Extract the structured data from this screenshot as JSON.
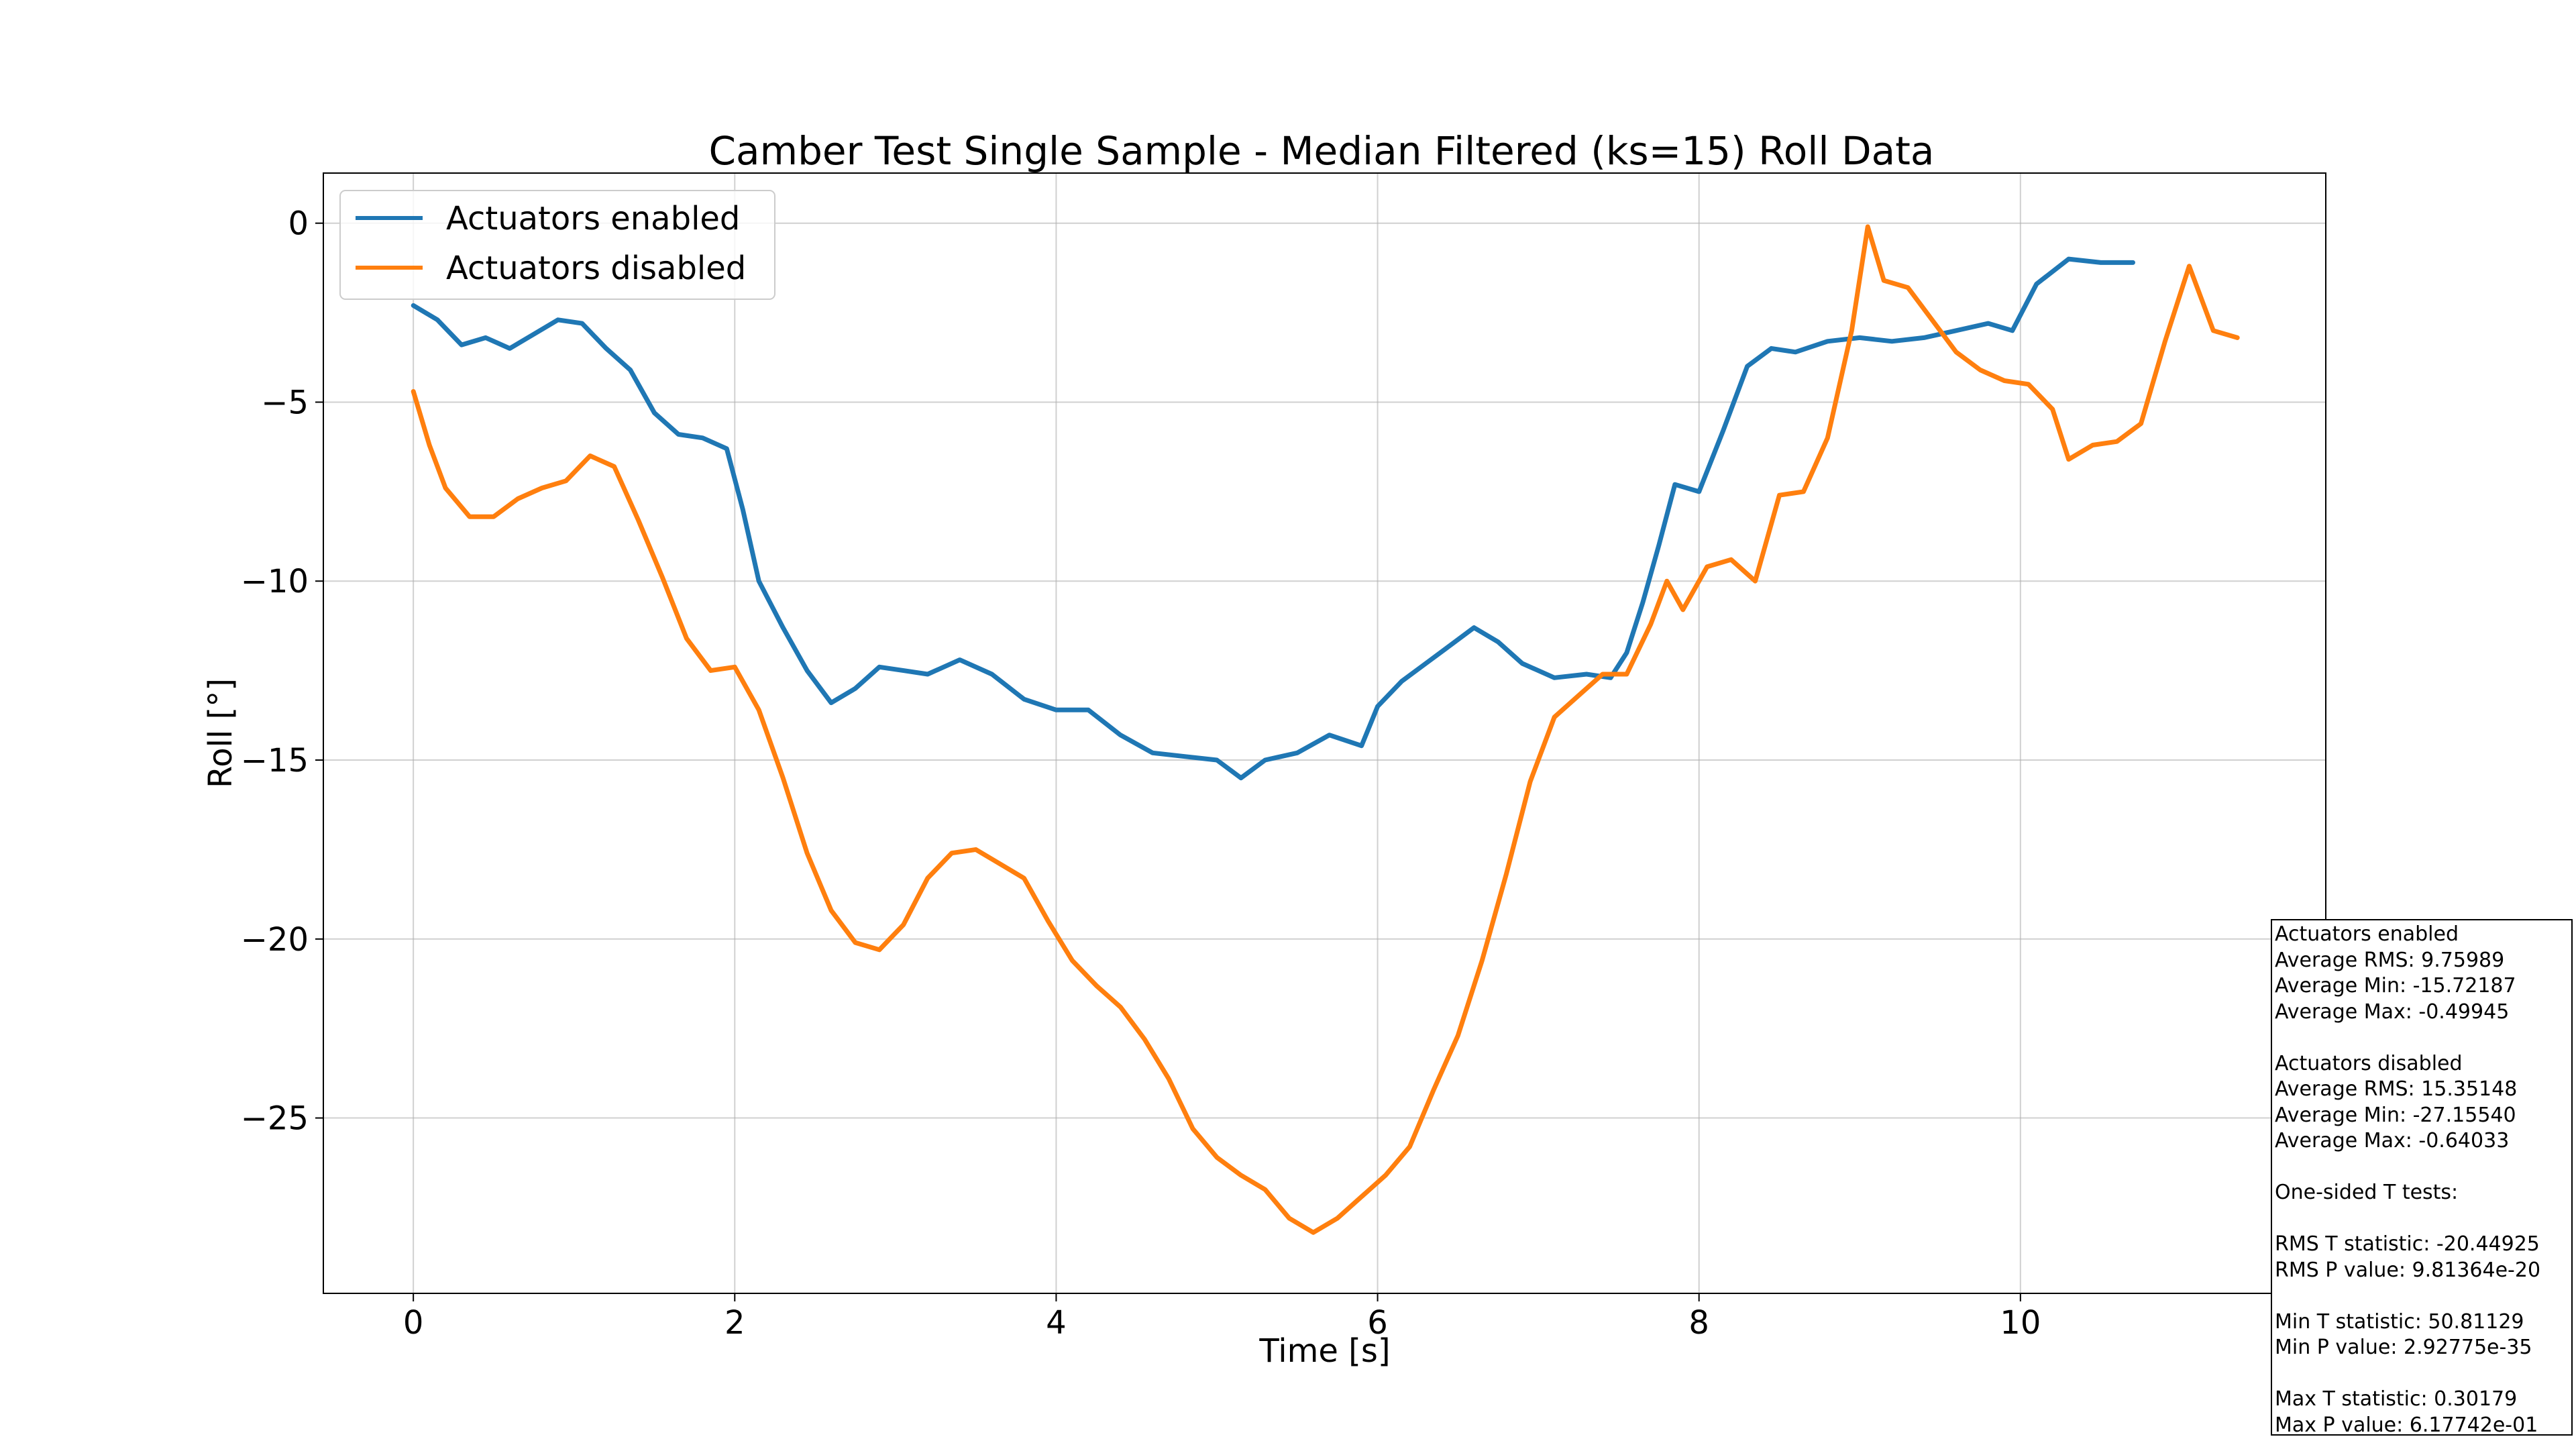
{
  "chart_data": {
    "type": "line",
    "title": "Camber Test Single Sample - Median Filtered (ks=15) Roll Data",
    "xlabel": "Time [s]",
    "ylabel": "Roll [°]",
    "xlim": [
      -0.56,
      11.9
    ],
    "ylim": [
      -29.9,
      1.4
    ],
    "xticks": [
      0,
      2,
      4,
      6,
      8,
      10
    ],
    "xtick_labels": [
      "0",
      "2",
      "4",
      "6",
      "8",
      "10"
    ],
    "yticks": [
      0,
      -5,
      -10,
      -15,
      -20,
      -25
    ],
    "ytick_labels": [
      "0",
      "−5",
      "−10",
      "−15",
      "−20",
      "−25"
    ],
    "grid": true,
    "legend": "top-left",
    "series": [
      {
        "name": "Actuators enabled",
        "color": "#1f77b4",
        "x": [
          0,
          0.15,
          0.3,
          0.45,
          0.6,
          0.75,
          0.9,
          1.05,
          1.2,
          1.35,
          1.5,
          1.65,
          1.8,
          1.95,
          2.05,
          2.15,
          2.3,
          2.45,
          2.6,
          2.75,
          2.9,
          3.05,
          3.2,
          3.4,
          3.6,
          3.8,
          4.0,
          4.2,
          4.4,
          4.6,
          4.8,
          5.0,
          5.15,
          5.3,
          5.5,
          5.7,
          5.9,
          6.0,
          6.15,
          6.3,
          6.45,
          6.6,
          6.75,
          6.9,
          7.1,
          7.3,
          7.45,
          7.55,
          7.65,
          7.75,
          7.85,
          8.0,
          8.15,
          8.3,
          8.45,
          8.6,
          8.8,
          9.0,
          9.2,
          9.4,
          9.6,
          9.8,
          9.95,
          10.1,
          10.3,
          10.5,
          10.7
        ],
        "values": [
          -2.3,
          -2.7,
          -3.4,
          -3.2,
          -3.5,
          -3.1,
          -2.7,
          -2.8,
          -3.5,
          -4.1,
          -5.3,
          -5.9,
          -6.0,
          -6.3,
          -8.0,
          -10.0,
          -11.3,
          -12.5,
          -13.4,
          -13.0,
          -12.4,
          -12.5,
          -12.6,
          -12.2,
          -12.6,
          -13.3,
          -13.6,
          -13.6,
          -14.3,
          -14.8,
          -14.9,
          -15.0,
          -15.5,
          -15.0,
          -14.8,
          -14.3,
          -14.6,
          -13.5,
          -12.8,
          -12.3,
          -11.8,
          -11.3,
          -11.7,
          -12.3,
          -12.7,
          -12.6,
          -12.7,
          -12.0,
          -10.6,
          -9.0,
          -7.3,
          -7.5,
          -5.8,
          -4.0,
          -3.5,
          -3.6,
          -3.3,
          -3.2,
          -3.3,
          -3.2,
          -3.0,
          -2.8,
          -3.0,
          -1.7,
          -1.0,
          -1.1,
          -1.1
        ]
      },
      {
        "name": "Actuators disabled",
        "color": "#ff7f0e",
        "x": [
          0,
          0.1,
          0.2,
          0.35,
          0.5,
          0.65,
          0.8,
          0.95,
          1.1,
          1.25,
          1.4,
          1.55,
          1.7,
          1.85,
          2.0,
          2.15,
          2.3,
          2.45,
          2.6,
          2.75,
          2.9,
          3.05,
          3.2,
          3.35,
          3.5,
          3.65,
          3.8,
          3.95,
          4.1,
          4.25,
          4.4,
          4.55,
          4.7,
          4.85,
          5.0,
          5.15,
          5.3,
          5.45,
          5.6,
          5.75,
          5.9,
          6.05,
          6.2,
          6.35,
          6.5,
          6.65,
          6.8,
          6.95,
          7.1,
          7.25,
          7.4,
          7.55,
          7.7,
          7.8,
          7.9,
          8.05,
          8.2,
          8.35,
          8.5,
          8.65,
          8.8,
          8.95,
          9.05,
          9.15,
          9.3,
          9.45,
          9.6,
          9.75,
          9.9,
          10.05,
          10.2,
          10.3,
          10.45,
          10.6,
          10.75,
          10.9,
          11.05,
          11.2,
          11.35
        ],
        "values": [
          -4.7,
          -6.2,
          -7.4,
          -8.2,
          -8.2,
          -7.7,
          -7.4,
          -7.2,
          -6.5,
          -6.8,
          -8.3,
          -9.9,
          -11.6,
          -12.5,
          -12.4,
          -13.6,
          -15.5,
          -17.6,
          -19.2,
          -20.1,
          -20.3,
          -19.6,
          -18.3,
          -17.6,
          -17.5,
          -17.9,
          -18.3,
          -19.5,
          -20.6,
          -21.3,
          -21.9,
          -22.8,
          -23.9,
          -25.3,
          -26.1,
          -26.6,
          -27.0,
          -27.8,
          -28.2,
          -27.8,
          -27.2,
          -26.6,
          -25.8,
          -24.2,
          -22.7,
          -20.6,
          -18.2,
          -15.6,
          -13.8,
          -13.2,
          -12.6,
          -12.6,
          -11.2,
          -10.0,
          -10.8,
          -9.6,
          -9.4,
          -10.0,
          -7.6,
          -7.5,
          -6.0,
          -3.0,
          -0.1,
          -1.6,
          -1.8,
          -2.7,
          -3.6,
          -4.1,
          -4.4,
          -4.5,
          -5.2,
          -6.6,
          -6.2,
          -6.1,
          -5.6,
          -3.3,
          -1.2,
          -3.0,
          -3.2
        ]
      }
    ]
  },
  "stats_box": {
    "lines": [
      "Actuators enabled",
      "Average RMS: 9.75989",
      "Average Min: -15.72187",
      "Average Max: -0.49945",
      "",
      "Actuators disabled",
      "Average RMS: 15.35148",
      "Average Min: -27.15540",
      "Average Max: -0.64033",
      "",
      "One-sided T tests:",
      "",
      "RMS T statistic: -20.44925",
      "RMS P value: 9.81364e-20",
      "",
      "Min T statistic: 50.81129",
      "Min P value: 2.92775e-35",
      "",
      "Max T statistic: 0.30179",
      "Max P value: 6.17742e-01"
    ]
  }
}
